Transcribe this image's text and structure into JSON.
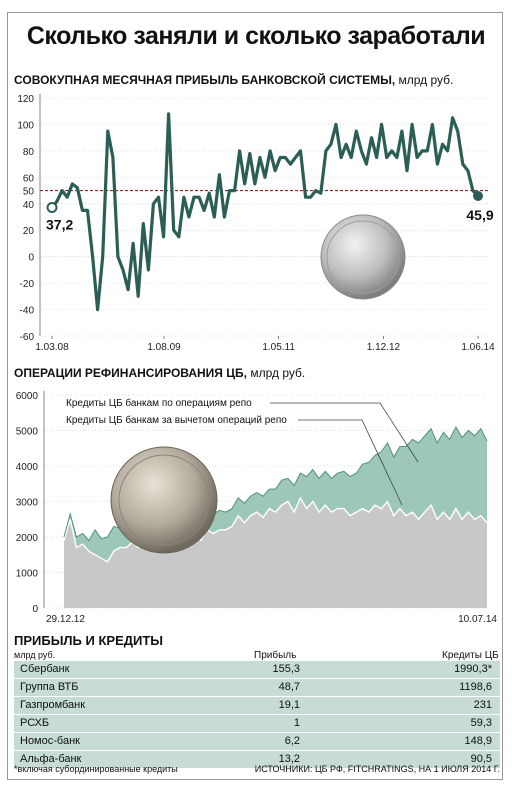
{
  "title": "Сколько заняли и сколько заработали",
  "chart_data": [
    {
      "type": "line",
      "title": "СОВОКУПНАЯ МЕСЯЧНАЯ ПРИБЫЛЬ БАНКОВСКОЙ СИСТЕМЫ,",
      "unit": "млрд руб.",
      "xlabel": "",
      "ylabel": "",
      "ylim": [
        -60,
        120
      ],
      "yticks": [
        "120",
        "100",
        "80",
        "60",
        "50",
        "40",
        "20",
        "0",
        "-20",
        "-40",
        "-60"
      ],
      "xticks": [
        "1.03.08",
        "1.08.09",
        "1.05.11",
        "1.12.12",
        "1.06.14"
      ],
      "reference_line": 50,
      "start_label": "37,2",
      "end_label": "45,9",
      "colors": {
        "line": "#2b5f55",
        "reference": "#9a1f24",
        "grid": "#cfd8d6"
      },
      "values": [
        37.2,
        42,
        50,
        45,
        55,
        52,
        35,
        35,
        0,
        -40,
        0,
        95,
        75,
        0,
        -10,
        -25,
        10,
        -30,
        25,
        -10,
        40,
        45,
        15,
        108,
        20,
        15,
        45,
        30,
        45,
        45,
        35,
        48,
        30,
        62,
        30,
        50,
        50,
        80,
        55,
        78,
        55,
        75,
        60,
        80,
        65,
        75,
        75,
        70,
        75,
        80,
        45,
        45,
        50,
        48,
        80,
        85,
        100,
        75,
        85,
        75,
        95,
        80,
        70,
        90,
        75,
        100,
        75,
        80,
        75,
        95,
        65,
        100,
        75,
        80,
        80,
        100,
        70,
        85,
        80,
        105,
        95,
        70,
        65,
        50,
        45.9
      ]
    },
    {
      "type": "area",
      "title": "ОПЕРАЦИИ РЕФИНАНСИРОВАНИЯ ЦБ,",
      "unit": "млрд руб.",
      "xlabel": "",
      "ylabel": "",
      "ylim": [
        0,
        6000
      ],
      "yticks": [
        "6000",
        "5000",
        "4000",
        "3000",
        "2000",
        "1000",
        "0"
      ],
      "xticks": [
        "29.12.12",
        "10.07.14"
      ],
      "colors": {
        "total": "#9dc8b8",
        "net": "#c8c8c8",
        "grid": "#cfd8d6"
      },
      "series": [
        {
          "name": "Кредиты ЦБ банкам по операциям репо",
          "values": [
            2000,
            2650,
            2000,
            2100,
            1900,
            2200,
            1950,
            2000,
            2300,
            2250,
            2250,
            2350,
            2200,
            2250,
            2400,
            2250,
            2400,
            2300,
            2550,
            2400,
            2350,
            2650,
            2400,
            2700,
            2650,
            2750,
            2700,
            2800,
            3100,
            2950,
            3150,
            3250,
            3150,
            3350,
            3350,
            3600,
            3650,
            3450,
            3800,
            3700,
            3900,
            3650,
            3850,
            3650,
            3800,
            3850,
            3700,
            3800,
            4050,
            4100,
            4300,
            4400,
            4650,
            4250,
            4550,
            4550,
            4750,
            4650,
            4850,
            5050,
            4650,
            4950,
            4750,
            5100,
            4800,
            5000,
            4850,
            5050,
            4700
          ]
        },
        {
          "name": "Кредиты ЦБ банкам за вычетом операций репо",
          "values": [
            1900,
            2500,
            1700,
            1800,
            1600,
            1500,
            1400,
            1300,
            1600,
            1700,
            1700,
            1850,
            1700,
            1800,
            1800,
            1600,
            1700,
            1650,
            2000,
            1900,
            1800,
            2100,
            1900,
            2200,
            2100,
            2200,
            2200,
            2300,
            2600,
            2400,
            2600,
            2700,
            2550,
            2800,
            2700,
            2900,
            3000,
            2700,
            3100,
            2800,
            3000,
            2700,
            2900,
            2700,
            2800,
            2800,
            2600,
            2700,
            2800,
            2700,
            2900,
            2800,
            3000,
            2600,
            2800,
            2600,
            2700,
            2500,
            2700,
            2900,
            2500,
            2700,
            2500,
            2800,
            2500,
            2700,
            2500,
            2600,
            2400
          ]
        }
      ]
    }
  ],
  "table": {
    "title": "ПРИБЫЛЬ И КРЕДИТЫ",
    "unit": "млрд руб.",
    "col_profit": "Прибыль",
    "col_credit": "Кредиты ЦБ",
    "rows": [
      {
        "name": "Сбербанк",
        "profit": "155,3",
        "credit": "1990,3*"
      },
      {
        "name": "Группа ВТБ",
        "profit": "48,7",
        "credit": "1198,6"
      },
      {
        "name": "Газпромбанк",
        "profit": "19,1",
        "credit": "231"
      },
      {
        "name": "РСХБ",
        "profit": "1",
        "credit": "59,3"
      },
      {
        "name": "Номос-банк",
        "profit": "6,2",
        "credit": "148,9"
      },
      {
        "name": "Альфа-банк",
        "profit": "13,2",
        "credit": "90,5"
      }
    ]
  },
  "footnote": "*включая субординированные кредиты",
  "source": "ИСТОЧНИКИ: ЦБ РФ, FITCHRATINGS, НА 1 ИЮЛЯ 2014 Г."
}
